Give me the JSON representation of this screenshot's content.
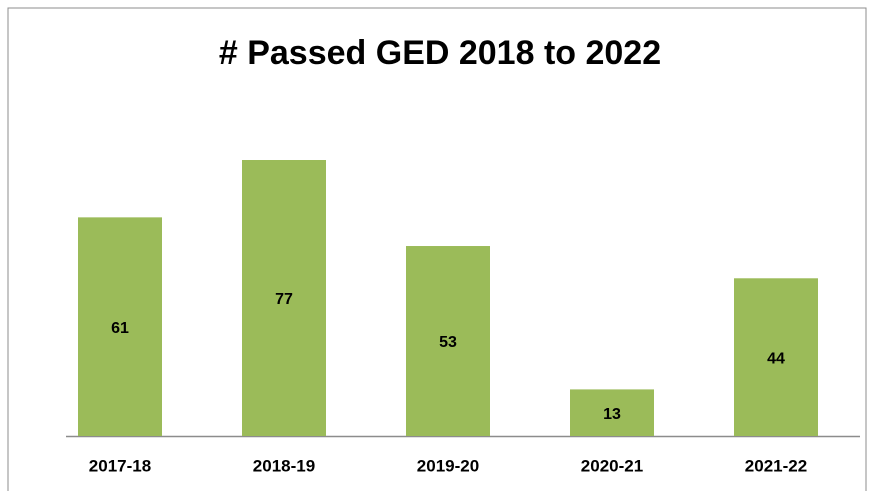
{
  "chart_data": {
    "type": "bar",
    "title": "# Passed GED 2018 to 2022",
    "categories": [
      "2017-18",
      "2018-19",
      "2019-20",
      "2020-21",
      "2021-22"
    ],
    "values": [
      61,
      77,
      53,
      13,
      44
    ],
    "color": "#9bbb59"
  }
}
